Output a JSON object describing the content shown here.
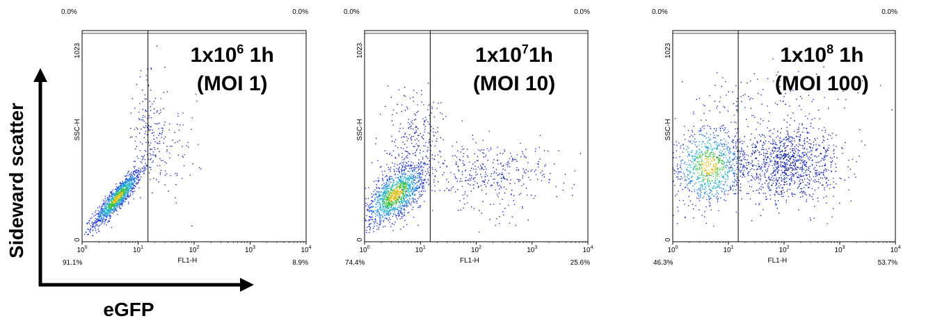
{
  "figure": {
    "axis_arrows": {
      "y_label": "Sideward scatter",
      "x_label": "eGFP"
    }
  },
  "chart_data": [
    {
      "type": "scatter",
      "title_main": "1x10",
      "title_exp": "6",
      "title_tail": " 1h",
      "title_line2": "(MOI 1)",
      "xlabel": "FL1-H",
      "ylabel": "SSC-H",
      "x_scale": "log",
      "xlim": [
        1,
        10000
      ],
      "ylim": [
        0,
        1023
      ],
      "x_ticks": [
        "10",
        "10",
        "10",
        "10",
        "10"
      ],
      "x_tick_exps": [
        "0",
        "1",
        "2",
        "3",
        "4"
      ],
      "y_ticks": [
        "0",
        "1023"
      ],
      "gate_x": 15,
      "quadrants": {
        "top_left": "0.0%",
        "top_right": "0.0%",
        "bottom_left": "91.1%",
        "bottom_right": "8.9%"
      },
      "clusters": [
        {
          "x_log": [
            0.2,
            1.05
          ],
          "y": [
            80,
            350
          ],
          "tilt": 0.9,
          "n": 1200,
          "dense": true
        },
        {
          "x_log": [
            0.9,
            1.5
          ],
          "y": [
            300,
            800
          ],
          "n": 160,
          "dense": false
        },
        {
          "x_log": [
            1.1,
            2.1
          ],
          "y": [
            150,
            650
          ],
          "n": 70,
          "dense": false
        }
      ]
    },
    {
      "type": "scatter",
      "title_main": "1x10",
      "title_exp": "7",
      "title_tail": "1h",
      "title_line2": "(MOI 10)",
      "xlabel": "FL1-H",
      "ylabel": "SSC-H",
      "x_scale": "log",
      "xlim": [
        1,
        10000
      ],
      "ylim": [
        0,
        1023
      ],
      "x_ticks": [
        "10",
        "10",
        "10",
        "10",
        "10"
      ],
      "x_tick_exps": [
        "0",
        "1",
        "2",
        "3",
        "4"
      ],
      "y_ticks": [
        "0",
        "1023"
      ],
      "gate_x": 15,
      "quadrants": {
        "top_left": "0.0%",
        "top_right": "0.0%",
        "bottom_left": "74.4%",
        "bottom_right": "25.6%"
      },
      "clusters": [
        {
          "x_log": [
            0.0,
            1.1
          ],
          "y": [
            80,
            380
          ],
          "tilt": 0.6,
          "n": 1300,
          "dense": true
        },
        {
          "x_log": [
            0.4,
            1.4
          ],
          "y": [
            250,
            720
          ],
          "n": 260,
          "dense": false
        },
        {
          "x_log": [
            1.1,
            3.4
          ],
          "y": [
            150,
            500
          ],
          "n": 380,
          "dense": false
        }
      ]
    },
    {
      "type": "scatter",
      "title_main": "1x10",
      "title_exp": "8",
      "title_tail": " 1h",
      "title_line2": "(MOI 100)",
      "xlabel": "FL1-H",
      "ylabel": "SSC-H",
      "x_scale": "log",
      "xlim": [
        1,
        10000
      ],
      "ylim": [
        0,
        1023
      ],
      "x_ticks": [
        "10",
        "10",
        "10",
        "10",
        "10"
      ],
      "x_tick_exps": [
        "0",
        "1",
        "2",
        "3",
        "4"
      ],
      "y_ticks": [
        "0",
        "1023"
      ],
      "gate_x": 15,
      "quadrants": {
        "top_left": "0.0%",
        "top_right": "0.0%",
        "bottom_left": "46.3%",
        "bottom_right": "53.7%"
      },
      "clusters": [
        {
          "x_log": [
            0.0,
            1.3
          ],
          "y": [
            180,
            560
          ],
          "tilt": 0.0,
          "n": 900,
          "dense": true
        },
        {
          "x_log": [
            1.1,
            3.0
          ],
          "y": [
            200,
            560
          ],
          "tilt": 0.0,
          "n": 1100,
          "dense": false
        },
        {
          "x_log": [
            0.2,
            3.3
          ],
          "y": [
            550,
            850
          ],
          "n": 120,
          "dense": false
        }
      ]
    }
  ]
}
